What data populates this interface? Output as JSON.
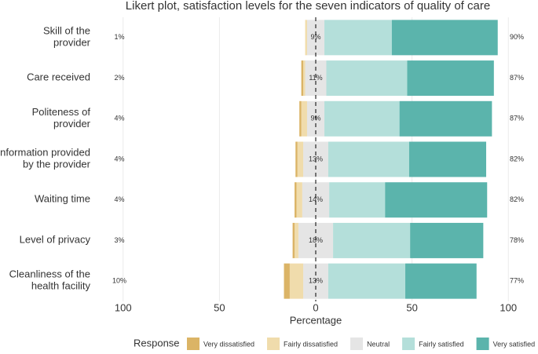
{
  "chart_data": {
    "type": "diverging-bar",
    "title": "Likert plot, satisfaction levels for the seven indicators of quality of care",
    "x_label": "Percentage",
    "legend_title": "Response",
    "categories": [
      "Skill of the provider",
      "Care received",
      "Politeness of provider",
      "Information provided by the provider",
      "Waiting time",
      "Level of privacy",
      "Cleanliness of the health facility"
    ],
    "series": [
      {
        "name": "Very dissatisfied",
        "color": "#dbb466",
        "side": "negative",
        "values": [
          0,
          1,
          1,
          1,
          1,
          1,
          3
        ]
      },
      {
        "name": "Fairly dissatisfied",
        "color": "#f0dcac",
        "side": "negative",
        "values": [
          1,
          1,
          3,
          3,
          3,
          2,
          7
        ]
      },
      {
        "name": "Neutral",
        "color": "#e5e5e5",
        "side": "center",
        "values": [
          9,
          11,
          9,
          13,
          14,
          18,
          13
        ],
        "value_labels": [
          "9%",
          "11%",
          "9%",
          "13%",
          "14%",
          "18%",
          "13%"
        ]
      },
      {
        "name": "Fairly satisfied",
        "color": "#b4dfda",
        "side": "positive",
        "values": [
          35,
          42,
          39,
          42,
          29,
          40,
          40
        ]
      },
      {
        "name": "Very satisfied",
        "color": "#5bb4ac",
        "side": "positive",
        "values": [
          55,
          45,
          48,
          40,
          53,
          38,
          37
        ]
      }
    ],
    "dissatisfied_labels": [
      "1%",
      "2%",
      "4%",
      "4%",
      "4%",
      "3%",
      "10%"
    ],
    "satisfied_labels": [
      "90%",
      "87%",
      "87%",
      "82%",
      "82%",
      "78%",
      "77%"
    ],
    "xlim": [
      -115,
      115
    ],
    "xticks": [
      {
        "value": -100,
        "label": "100"
      },
      {
        "value": -50,
        "label": "50"
      },
      0,
      50,
      100
    ],
    "grid": true
  }
}
